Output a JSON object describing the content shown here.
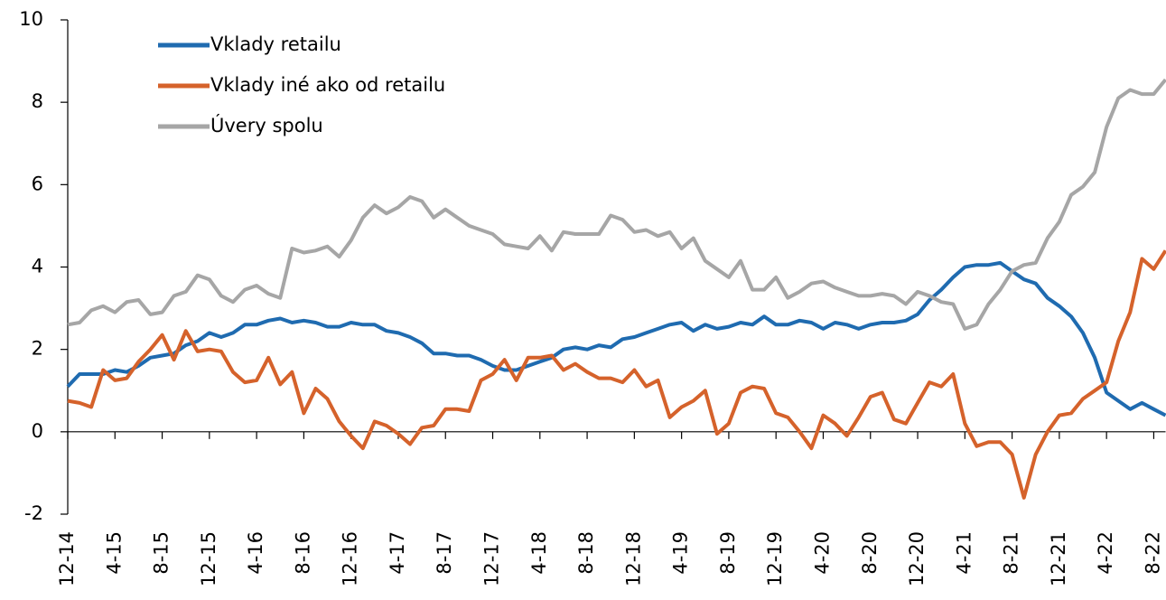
{
  "chart_data": {
    "type": "line",
    "categories": [
      "12-14",
      null,
      null,
      null,
      "4-15",
      null,
      null,
      null,
      "8-15",
      null,
      null,
      null,
      "12-15",
      null,
      null,
      null,
      "4-16",
      null,
      null,
      null,
      "8-16",
      null,
      null,
      null,
      "12-16",
      null,
      null,
      null,
      "4-17",
      null,
      null,
      null,
      "8-17",
      null,
      null,
      null,
      "12-17",
      null,
      null,
      null,
      "4-18",
      null,
      null,
      null,
      "8-18",
      null,
      null,
      null,
      "12-18",
      null,
      null,
      null,
      "4-19",
      null,
      null,
      null,
      "8-19",
      null,
      null,
      null,
      "12-19",
      null,
      null,
      null,
      "4-20",
      null,
      null,
      null,
      "8-20",
      null,
      null,
      null,
      "12-20",
      null,
      null,
      null,
      "4-21",
      null,
      null,
      null,
      "8-21",
      null,
      null,
      null,
      "12-21",
      null,
      null,
      null,
      "4-22",
      null,
      null,
      null,
      "8-22",
      null
    ],
    "series": [
      {
        "name": "Vklady retailu",
        "color": "#1f6bb0",
        "values": [
          1.1,
          1.4,
          1.4,
          1.4,
          1.5,
          1.45,
          1.6,
          1.8,
          1.85,
          1.9,
          2.1,
          2.2,
          2.4,
          2.3,
          2.4,
          2.6,
          2.6,
          2.7,
          2.75,
          2.65,
          2.7,
          2.65,
          2.55,
          2.55,
          2.65,
          2.6,
          2.6,
          2.45,
          2.4,
          2.3,
          2.15,
          1.9,
          1.9,
          1.85,
          1.85,
          1.75,
          1.6,
          1.5,
          1.5,
          1.6,
          1.7,
          1.8,
          2.0,
          2.05,
          2.0,
          2.1,
          2.05,
          2.25,
          2.3,
          2.4,
          2.5,
          2.6,
          2.65,
          2.45,
          2.6,
          2.5,
          2.55,
          2.65,
          2.6,
          2.8,
          2.6,
          2.6,
          2.7,
          2.65,
          2.5,
          2.65,
          2.6,
          2.5,
          2.6,
          2.65,
          2.65,
          2.7,
          2.85,
          3.2,
          3.45,
          3.75,
          4.0,
          4.05,
          4.05,
          4.1,
          3.9,
          3.7,
          3.6,
          3.25,
          3.05,
          2.8,
          2.4,
          1.8,
          0.95,
          0.75,
          0.55,
          0.7,
          0.55,
          0.4
        ]
      },
      {
        "name": "Vklady iné ako od retailu",
        "color": "#d5622b",
        "values": [
          0.75,
          0.7,
          0.6,
          1.5,
          1.25,
          1.3,
          1.7,
          2.0,
          2.35,
          1.75,
          2.45,
          1.95,
          2.0,
          1.95,
          1.45,
          1.2,
          1.25,
          1.8,
          1.15,
          1.45,
          0.45,
          1.05,
          0.8,
          0.25,
          -0.1,
          -0.4,
          0.25,
          0.15,
          -0.05,
          -0.3,
          0.1,
          0.15,
          0.55,
          0.55,
          0.5,
          1.25,
          1.4,
          1.75,
          1.25,
          1.8,
          1.8,
          1.85,
          1.5,
          1.65,
          1.45,
          1.3,
          1.3,
          1.2,
          1.5,
          1.1,
          1.25,
          0.35,
          0.6,
          0.75,
          1.0,
          -0.05,
          0.2,
          0.95,
          1.1,
          1.05,
          0.45,
          0.35,
          0.0,
          -0.4,
          0.4,
          0.2,
          -0.1,
          0.35,
          0.85,
          0.95,
          0.3,
          0.2,
          0.7,
          1.2,
          1.1,
          1.4,
          0.2,
          -0.35,
          -0.25,
          -0.25,
          -0.55,
          -1.6,
          -0.55,
          0.0,
          0.4,
          0.45,
          0.8,
          1.0,
          1.2,
          2.2,
          2.9,
          4.2,
          3.95,
          4.4
        ]
      },
      {
        "name": "Úvery spolu",
        "color": "#a6a6a6",
        "values": [
          2.6,
          2.65,
          2.95,
          3.05,
          2.9,
          3.15,
          3.2,
          2.85,
          2.9,
          3.3,
          3.4,
          3.8,
          3.7,
          3.3,
          3.15,
          3.45,
          3.55,
          3.35,
          3.25,
          4.45,
          4.35,
          4.4,
          4.5,
          4.25,
          4.65,
          5.2,
          5.5,
          5.3,
          5.45,
          5.7,
          5.6,
          5.2,
          5.4,
          5.2,
          5.0,
          4.9,
          4.8,
          4.55,
          4.5,
          4.45,
          4.75,
          4.4,
          4.85,
          4.8,
          4.8,
          4.8,
          5.25,
          5.15,
          4.85,
          4.9,
          4.75,
          4.85,
          4.45,
          4.7,
          4.15,
          3.95,
          3.75,
          4.15,
          3.45,
          3.45,
          3.75,
          3.25,
          3.4,
          3.6,
          3.65,
          3.5,
          3.4,
          3.3,
          3.3,
          3.35,
          3.3,
          3.1,
          3.4,
          3.3,
          3.15,
          3.1,
          2.5,
          2.6,
          3.1,
          3.45,
          3.9,
          4.05,
          4.1,
          4.7,
          5.1,
          5.75,
          5.95,
          6.3,
          7.4,
          8.1,
          8.3,
          8.2,
          8.2,
          8.55
        ]
      }
    ],
    "ylim": [
      -2,
      10
    ],
    "yticks": [
      -2,
      0,
      2,
      4,
      6,
      8,
      10
    ]
  }
}
